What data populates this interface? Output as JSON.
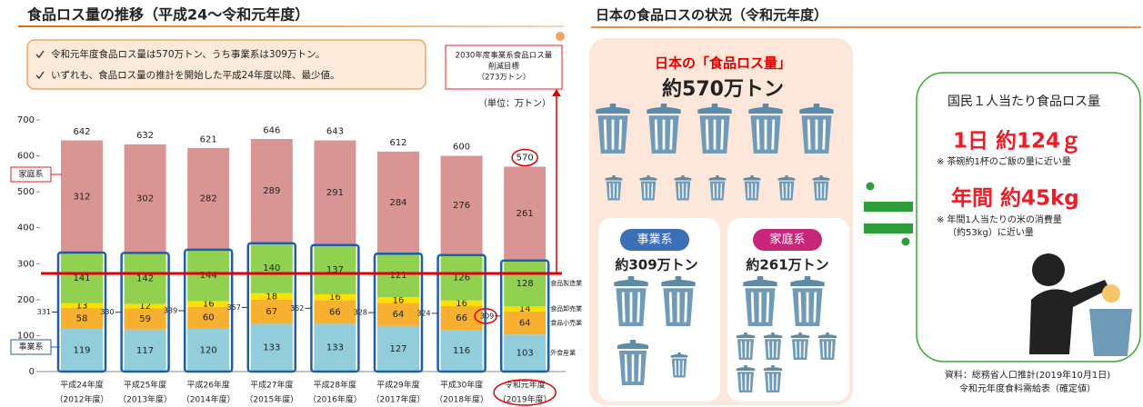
{
  "chart_data": {
    "type": "stacked_bar",
    "title": "食品ロス量の推移（平成24～令和元年度）",
    "bullets": [
      "令和元年度食品ロス量は570万トン、うち事業系は309万トン。",
      "いずれも、食品ロス量の推計を開始した平成24年度以降、最少値。"
    ],
    "unit": "（単位：万トン）",
    "categories": [
      "平成24年度",
      "平成25年度",
      "平成26年度",
      "平成27年度",
      "平成28年度",
      "平成29年度",
      "平成30年度",
      "令和元年度"
    ],
    "category_sublabels": [
      "（2012年度）",
      "（2013年度）",
      "（2014年度）",
      "（2015年度）",
      "（2016年度）",
      "（2017年度）",
      "（2018年度）",
      "（2019年度）"
    ],
    "series": [
      {
        "name": "外食産業",
        "color": "#92cddc",
        "values": [
          119,
          117,
          120,
          133,
          133,
          127,
          116,
          103
        ]
      },
      {
        "name": "食品小売業",
        "color": "#f8b030",
        "values": [
          58,
          59,
          60,
          67,
          66,
          64,
          66,
          64
        ]
      },
      {
        "name": "食品卸売業",
        "color": "#ffe100",
        "values": [
          13,
          12,
          16,
          18,
          16,
          16,
          16,
          14
        ]
      },
      {
        "name": "食品製造業",
        "color": "#92d050",
        "values": [
          141,
          142,
          144,
          140,
          137,
          121,
          126,
          128
        ]
      },
      {
        "name": "家庭系",
        "color": "#d99594",
        "values": [
          312,
          302,
          282,
          289,
          291,
          284,
          276,
          261
        ]
      }
    ],
    "totals": [
      642,
      632,
      621,
      646,
      643,
      612,
      600,
      570
    ],
    "business_totals": [
      331,
      330,
      339,
      357,
      352,
      328,
      324,
      309
    ],
    "business_label": "事業系",
    "target": {
      "value": 273,
      "label": [
        "2030年度事業系食品ロス量",
        "削減目標",
        "（273万トン）"
      ]
    },
    "ylim": [
      0,
      700
    ],
    "yticks": [
      0,
      100,
      200,
      300,
      400,
      500,
      600,
      700
    ],
    "grid": false
  },
  "infographic": {
    "title": "日本の食品ロスの状況（令和元年度）",
    "total_heading": "日本の「食品ロス量」",
    "total": "約570万トン",
    "business": {
      "label": "事業系",
      "amount": "約309万トン"
    },
    "household": {
      "label": "家庭系",
      "amount": "約261万トン"
    },
    "per_capita": {
      "heading": "国民１人当たり食品ロス量",
      "daily": "1日 約124ｇ",
      "daily_note": "※ 茶碗約1杯のご飯の量に近い量",
      "annual": "年間 約45kg",
      "annual_note": [
        "※ 年間1人当たりの米の消費量",
        "（約53kg）に近い量"
      ]
    },
    "source": [
      "資料：総務省人口推計(2019年10月1日)",
      "令和元年度食料需給表（確定値）"
    ]
  }
}
